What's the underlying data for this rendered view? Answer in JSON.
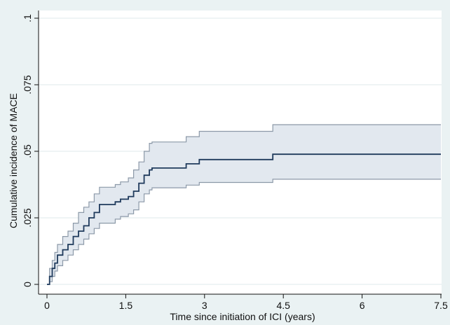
{
  "chart_data": {
    "type": "line",
    "title": "",
    "xlabel": "Time since initiation of ICI (years)",
    "ylabel": "Cumulative incidence of MACE",
    "xlim": [
      0,
      7.5
    ],
    "ylim": [
      0,
      0.1
    ],
    "x_ticks": [
      {
        "value": 0,
        "label": "0"
      },
      {
        "value": 1.5,
        "label": "1.5"
      },
      {
        "value": 3,
        "label": "3"
      },
      {
        "value": 4.5,
        "label": "4.5"
      },
      {
        "value": 6,
        "label": "6"
      },
      {
        "value": 7.5,
        "label": "7.5"
      }
    ],
    "y_ticks": [
      {
        "value": 0,
        "label": "0"
      },
      {
        "value": 0.025,
        "label": ".025"
      },
      {
        "value": 0.05,
        "label": ".05"
      },
      {
        "value": 0.075,
        "label": ".075"
      },
      {
        "value": 0.1,
        "label": ".1"
      }
    ],
    "grid": true,
    "colors": {
      "background": "#eaf2f3",
      "plot_background": "#ffffff",
      "grid": "#dfe9eb",
      "line": "#1f3a5c",
      "band_fill": "#e2e8ef",
      "band_line": "#8c99a8"
    },
    "series": [
      {
        "name": "",
        "type": "step",
        "x": [
          0,
          0.05,
          0.1,
          0.15,
          0.2,
          0.3,
          0.4,
          0.5,
          0.6,
          0.7,
          0.8,
          0.9,
          1.0,
          1.3,
          1.4,
          1.55,
          1.65,
          1.75,
          1.85,
          1.95,
          2.0,
          2.65,
          2.9,
          4.3,
          7.5
        ],
        "y": [
          0,
          0.003,
          0.006,
          0.008,
          0.011,
          0.013,
          0.015,
          0.018,
          0.02,
          0.022,
          0.025,
          0.027,
          0.03,
          0.031,
          0.032,
          0.033,
          0.035,
          0.038,
          0.041,
          0.043,
          0.0437,
          0.0453,
          0.0469,
          0.0489,
          0.0489
        ],
        "lower": [
          0,
          0.001,
          0.003,
          0.005,
          0.007,
          0.009,
          0.011,
          0.013,
          0.015,
          0.017,
          0.019,
          0.021,
          0.023,
          0.0245,
          0.0255,
          0.0265,
          0.028,
          0.031,
          0.034,
          0.0355,
          0.0363,
          0.0373,
          0.0383,
          0.0395,
          0.0395
        ],
        "upper": [
          0,
          0.006,
          0.009,
          0.012,
          0.015,
          0.018,
          0.02,
          0.023,
          0.027,
          0.029,
          0.031,
          0.034,
          0.0365,
          0.0375,
          0.0385,
          0.04,
          0.043,
          0.046,
          0.05,
          0.053,
          0.0535,
          0.0555,
          0.0575,
          0.06,
          0.06
        ]
      }
    ]
  }
}
